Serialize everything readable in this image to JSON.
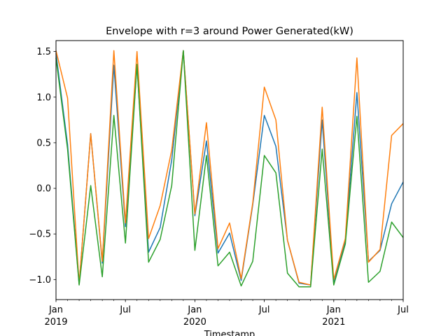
{
  "chart_data": {
    "type": "line",
    "title": "Envelope with r=3 around Power Generated(kW)",
    "xlabel": "Timestamp",
    "ylabel": "",
    "ylim": [
      -1.22,
      1.62
    ],
    "xlim": [
      "2019-01",
      "2021-07"
    ],
    "grid": false,
    "legend": "none",
    "y_ticks": [
      -1.0,
      -0.5,
      0.0,
      0.5,
      1.0,
      1.5
    ],
    "y_tick_labels": [
      "−1.0",
      "−0.5",
      "0.0",
      "0.5",
      "1.0",
      "1.5"
    ],
    "x_ticks": [
      {
        "x": "2019-01",
        "label": "Jan",
        "sublabel": "2019"
      },
      {
        "x": "2019-07",
        "label": "Jul",
        "sublabel": ""
      },
      {
        "x": "2020-01",
        "label": "Jan",
        "sublabel": "2020"
      },
      {
        "x": "2020-07",
        "label": "Jul",
        "sublabel": ""
      },
      {
        "x": "2021-01",
        "label": "Jan",
        "sublabel": "2021"
      },
      {
        "x": "2021-07",
        "label": "Jul",
        "sublabel": ""
      }
    ],
    "x": [
      "2019-01",
      "2019-02",
      "2019-03",
      "2019-04",
      "2019-05",
      "2019-06",
      "2019-07",
      "2019-08",
      "2019-09",
      "2019-10",
      "2019-11",
      "2019-12",
      "2020-01",
      "2020-02",
      "2020-03",
      "2020-04",
      "2020-05",
      "2020-06",
      "2020-07",
      "2020-08",
      "2020-09",
      "2020-10",
      "2020-11",
      "2020-12",
      "2021-01",
      "2021-02",
      "2021-03",
      "2021-04",
      "2021-05",
      "2021-06",
      "2021-07"
    ],
    "series": [
      {
        "color": "#1f77b4",
        "values": [
          1.48,
          0.48,
          -1.05,
          0.6,
          -0.82,
          1.35,
          -0.42,
          1.35,
          -0.7,
          -0.43,
          0.31,
          1.51,
          -0.3,
          0.52,
          -0.71,
          -0.49,
          -1.01,
          -0.18,
          0.8,
          0.46,
          -0.57,
          -1.04,
          -1.06,
          0.75,
          -1.04,
          -0.58,
          1.05,
          -0.8,
          -0.68,
          -0.17,
          0.07
        ]
      },
      {
        "color": "#ff7f0e",
        "values": [
          1.51,
          0.99,
          -1.05,
          0.6,
          -0.8,
          1.51,
          -0.38,
          1.5,
          -0.55,
          -0.19,
          0.42,
          1.51,
          -0.28,
          0.72,
          -0.66,
          -0.38,
          -0.99,
          -0.16,
          1.11,
          0.75,
          -0.57,
          -1.03,
          -1.06,
          0.89,
          -1.0,
          -0.55,
          1.43,
          -0.81,
          -0.67,
          0.58,
          0.71
        ]
      },
      {
        "color": "#2ca02c",
        "values": [
          1.43,
          0.43,
          -1.06,
          0.03,
          -0.97,
          0.8,
          -0.6,
          1.36,
          -0.81,
          -0.56,
          0.03,
          1.51,
          -0.68,
          0.36,
          -0.85,
          -0.7,
          -1.07,
          -0.8,
          0.36,
          0.17,
          -0.93,
          -1.08,
          -1.08,
          0.43,
          -1.06,
          -0.61,
          0.79,
          -1.03,
          -0.91,
          -0.37,
          -0.54
        ]
      }
    ]
  }
}
